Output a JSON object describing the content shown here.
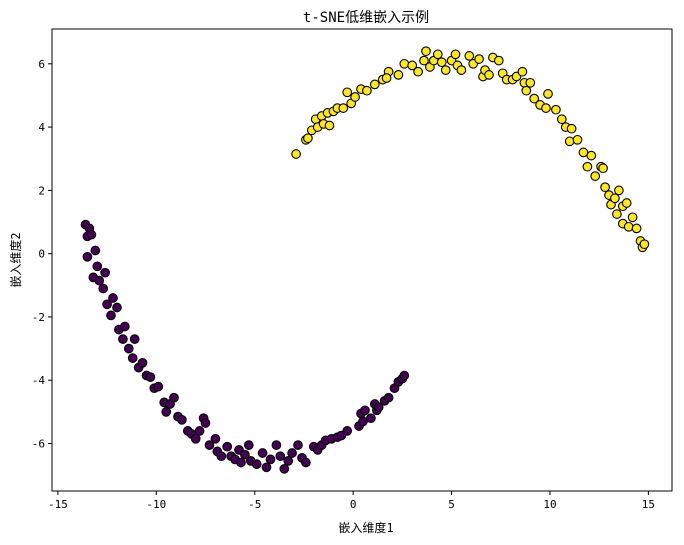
{
  "chart_data": {
    "type": "scatter",
    "title": "t-SNE低维嵌入示例",
    "xlabel": "嵌入维度1",
    "ylabel": "嵌入维度2",
    "xlim": [
      -15.3,
      16.2
    ],
    "ylim": [
      -7.5,
      7.1
    ],
    "xticks": [
      -15,
      -10,
      -5,
      0,
      5,
      10,
      15
    ],
    "yticks": [
      -6,
      -4,
      -2,
      0,
      2,
      4,
      6
    ],
    "xtick_labels": [
      "-15",
      "-10",
      "-5",
      "0",
      "5",
      "10",
      "15"
    ],
    "ytick_labels": [
      "-6",
      "-4",
      "-2",
      "0",
      "2",
      "4",
      "6"
    ],
    "grid": false,
    "series": [
      {
        "color": "#440154",
        "points": [
          [
            -13.6,
            0.92
          ],
          [
            -13.5,
            0.55
          ],
          [
            -13.4,
            0.8
          ],
          [
            -13.3,
            0.6
          ],
          [
            -13.5,
            -0.1
          ],
          [
            -13.2,
            -0.75
          ],
          [
            -13.1,
            0.1
          ],
          [
            -13.0,
            -0.4
          ],
          [
            -12.9,
            -0.85
          ],
          [
            -12.7,
            -1.1
          ],
          [
            -12.6,
            -0.6
          ],
          [
            -12.5,
            -1.6
          ],
          [
            -12.3,
            -1.95
          ],
          [
            -12.2,
            -1.4
          ],
          [
            -12.0,
            -1.7
          ],
          [
            -11.9,
            -2.4
          ],
          [
            -11.7,
            -2.7
          ],
          [
            -11.6,
            -2.3
          ],
          [
            -11.4,
            -3.0
          ],
          [
            -11.2,
            -3.3
          ],
          [
            -11.1,
            -2.7
          ],
          [
            -10.9,
            -3.6
          ],
          [
            -10.7,
            -3.45
          ],
          [
            -10.5,
            -3.85
          ],
          [
            -10.3,
            -3.9
          ],
          [
            -10.1,
            -4.25
          ],
          [
            -9.9,
            -4.2
          ],
          [
            -9.6,
            -4.7
          ],
          [
            -9.5,
            -5.0
          ],
          [
            -9.3,
            -4.75
          ],
          [
            -9.1,
            -4.55
          ],
          [
            -8.9,
            -5.15
          ],
          [
            -8.7,
            -5.25
          ],
          [
            -8.4,
            -5.6
          ],
          [
            -8.2,
            -5.7
          ],
          [
            -8.0,
            -5.85
          ],
          [
            -7.8,
            -5.6
          ],
          [
            -7.6,
            -5.2
          ],
          [
            -7.5,
            -5.35
          ],
          [
            -7.3,
            -6.05
          ],
          [
            -7.0,
            -5.85
          ],
          [
            -6.9,
            -6.25
          ],
          [
            -6.7,
            -6.4
          ],
          [
            -6.4,
            -6.1
          ],
          [
            -6.2,
            -6.4
          ],
          [
            -6.0,
            -6.5
          ],
          [
            -5.8,
            -6.2
          ],
          [
            -5.7,
            -6.6
          ],
          [
            -5.5,
            -6.35
          ],
          [
            -5.3,
            -6.05
          ],
          [
            -5.2,
            -6.55
          ],
          [
            -4.9,
            -6.65
          ],
          [
            -4.6,
            -6.3
          ],
          [
            -4.4,
            -6.75
          ],
          [
            -4.2,
            -6.5
          ],
          [
            -3.9,
            -6.05
          ],
          [
            -3.7,
            -6.4
          ],
          [
            -3.5,
            -6.8
          ],
          [
            -3.3,
            -6.55
          ],
          [
            -3.1,
            -6.3
          ],
          [
            -2.8,
            -6.05
          ],
          [
            -2.6,
            -6.45
          ],
          [
            -2.4,
            -6.6
          ],
          [
            -2.0,
            -6.1
          ],
          [
            -1.8,
            -6.2
          ],
          [
            -1.6,
            -6.05
          ],
          [
            -1.4,
            -5.9
          ],
          [
            -1.1,
            -5.85
          ],
          [
            -0.8,
            -5.8
          ],
          [
            -0.6,
            -5.75
          ],
          [
            -0.3,
            -5.6
          ],
          [
            0.3,
            -5.45
          ],
          [
            0.5,
            -5.3
          ],
          [
            0.4,
            -5.05
          ],
          [
            0.6,
            -4.95
          ],
          [
            0.9,
            -5.2
          ],
          [
            1.2,
            -4.95
          ],
          [
            1.1,
            -4.75
          ],
          [
            1.3,
            -4.85
          ],
          [
            1.6,
            -4.65
          ],
          [
            1.8,
            -4.55
          ],
          [
            2.1,
            -4.25
          ],
          [
            2.3,
            -4.05
          ],
          [
            2.5,
            -3.95
          ],
          [
            2.6,
            -3.85
          ]
        ]
      },
      {
        "color": "#fde725",
        "points": [
          [
            -2.9,
            3.15
          ],
          [
            -2.4,
            3.6
          ],
          [
            -2.3,
            3.65
          ],
          [
            -2.1,
            3.9
          ],
          [
            -1.9,
            4.25
          ],
          [
            -1.8,
            4.0
          ],
          [
            -1.6,
            4.35
          ],
          [
            -1.5,
            4.1
          ],
          [
            -1.3,
            4.45
          ],
          [
            -1.2,
            4.05
          ],
          [
            -1.0,
            4.5
          ],
          [
            -0.8,
            4.6
          ],
          [
            -0.5,
            4.6
          ],
          [
            -0.3,
            5.1
          ],
          [
            -0.1,
            4.75
          ],
          [
            0.1,
            4.95
          ],
          [
            0.4,
            5.2
          ],
          [
            0.7,
            5.15
          ],
          [
            1.1,
            5.35
          ],
          [
            1.5,
            5.5
          ],
          [
            1.8,
            5.75
          ],
          [
            1.7,
            5.55
          ],
          [
            2.3,
            5.65
          ],
          [
            2.6,
            6.0
          ],
          [
            3.0,
            5.95
          ],
          [
            3.3,
            5.75
          ],
          [
            3.6,
            6.1
          ],
          [
            3.7,
            6.4
          ],
          [
            3.9,
            5.9
          ],
          [
            4.1,
            6.1
          ],
          [
            4.3,
            6.3
          ],
          [
            4.5,
            6.05
          ],
          [
            4.7,
            5.8
          ],
          [
            5.0,
            6.1
          ],
          [
            5.2,
            6.3
          ],
          [
            5.3,
            5.95
          ],
          [
            5.5,
            5.8
          ],
          [
            5.9,
            6.25
          ],
          [
            6.1,
            6.0
          ],
          [
            6.4,
            6.15
          ],
          [
            6.6,
            5.6
          ],
          [
            6.7,
            5.8
          ],
          [
            6.9,
            5.65
          ],
          [
            7.1,
            6.2
          ],
          [
            7.4,
            6.1
          ],
          [
            7.6,
            5.7
          ],
          [
            7.8,
            5.5
          ],
          [
            8.1,
            5.5
          ],
          [
            8.3,
            5.6
          ],
          [
            8.6,
            5.75
          ],
          [
            8.7,
            5.4
          ],
          [
            8.8,
            5.15
          ],
          [
            9.0,
            5.4
          ],
          [
            9.2,
            4.9
          ],
          [
            9.5,
            4.7
          ],
          [
            9.8,
            4.6
          ],
          [
            9.9,
            5.05
          ],
          [
            10.3,
            4.55
          ],
          [
            10.6,
            4.25
          ],
          [
            10.8,
            4.0
          ],
          [
            11.0,
            3.55
          ],
          [
            11.1,
            3.95
          ],
          [
            11.4,
            3.6
          ],
          [
            11.7,
            3.2
          ],
          [
            11.9,
            2.75
          ],
          [
            12.1,
            3.1
          ],
          [
            12.3,
            2.45
          ],
          [
            12.6,
            2.75
          ],
          [
            12.8,
            2.1
          ],
          [
            12.7,
            2.7
          ],
          [
            13.0,
            1.85
          ],
          [
            13.1,
            1.55
          ],
          [
            13.3,
            1.75
          ],
          [
            13.5,
            2.0
          ],
          [
            13.7,
            1.5
          ],
          [
            13.9,
            1.6
          ],
          [
            13.4,
            1.25
          ],
          [
            13.7,
            0.95
          ],
          [
            14.0,
            0.85
          ],
          [
            14.2,
            1.15
          ],
          [
            14.4,
            0.8
          ],
          [
            14.6,
            0.4
          ],
          [
            14.7,
            0.2
          ],
          [
            14.8,
            0.3
          ]
        ]
      }
    ]
  }
}
